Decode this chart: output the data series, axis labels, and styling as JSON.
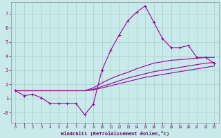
{
  "xlabel": "Windchill (Refroidissement éolien,°C)",
  "bg_color": "#c8eaea",
  "line_color": "#990099",
  "grid_color": "#aacccc",
  "xlim": [
    -0.5,
    23.5
  ],
  "ylim": [
    -0.7,
    7.8
  ],
  "yticks": [
    0,
    1,
    2,
    3,
    4,
    5,
    6,
    7
  ],
  "ytick_labels": [
    "-0",
    "1",
    "2",
    "3",
    "4",
    "5",
    "6",
    "7"
  ],
  "xticks": [
    0,
    1,
    2,
    3,
    4,
    5,
    6,
    7,
    8,
    9,
    10,
    11,
    12,
    13,
    14,
    15,
    16,
    17,
    18,
    19,
    20,
    21,
    22,
    23
  ],
  "series": [
    [
      1.55,
      1.2,
      1.3,
      1.05,
      0.65,
      0.65,
      0.65,
      0.65,
      -0.15,
      0.6,
      3.0,
      4.4,
      5.5,
      6.5,
      7.1,
      7.55,
      6.4,
      5.25,
      4.6,
      4.6,
      4.75,
      3.9,
      3.9,
      3.5
    ],
    [
      1.55,
      1.55,
      1.55,
      1.55,
      1.55,
      1.55,
      1.55,
      1.55,
      1.55,
      1.75,
      2.1,
      2.4,
      2.65,
      2.85,
      3.1,
      3.3,
      3.5,
      3.6,
      3.7,
      3.75,
      3.8,
      3.85,
      3.9,
      3.9
    ],
    [
      1.55,
      1.55,
      1.55,
      1.55,
      1.55,
      1.55,
      1.55,
      1.55,
      1.55,
      1.65,
      1.85,
      2.05,
      2.25,
      2.45,
      2.6,
      2.75,
      2.9,
      3.0,
      3.1,
      3.2,
      3.3,
      3.4,
      3.5,
      3.55
    ],
    [
      1.55,
      1.55,
      1.55,
      1.55,
      1.55,
      1.55,
      1.55,
      1.55,
      1.55,
      1.6,
      1.75,
      1.9,
      2.05,
      2.2,
      2.35,
      2.5,
      2.6,
      2.7,
      2.8,
      2.9,
      3.0,
      3.1,
      3.2,
      3.3
    ]
  ]
}
